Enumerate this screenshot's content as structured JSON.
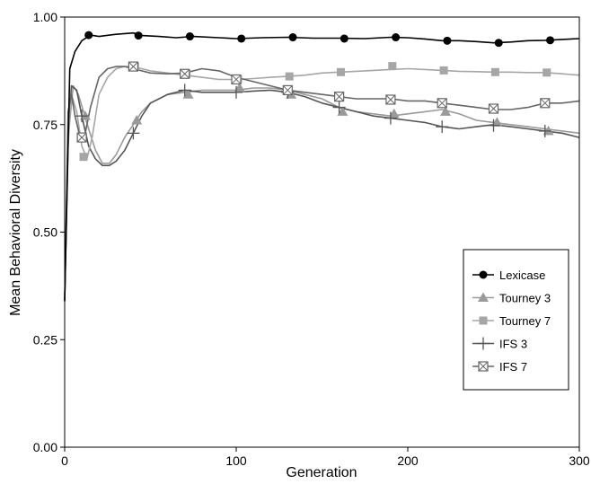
{
  "chart_data": {
    "type": "line",
    "title": "",
    "xlabel": "Generation",
    "ylabel": "Mean Behavioral Diversity",
    "xlim": [
      0,
      300
    ],
    "ylim": [
      0.0,
      1.0
    ],
    "xticks": [
      0,
      100,
      200,
      300
    ],
    "yticks": [
      0.0,
      0.25,
      0.5,
      0.75,
      1.0
    ],
    "xtick_labels": [
      "0",
      "100",
      "200",
      "300"
    ],
    "ytick_labels": [
      "0.00",
      "0.25",
      "0.50",
      "0.75",
      "1.00"
    ],
    "grid": false,
    "legend_position": "center-right",
    "series": [
      {
        "name": "Lexicase",
        "color": "#000000",
        "marker": "circle",
        "x": [
          0,
          3,
          6,
          10,
          15,
          20,
          30,
          40,
          45,
          55,
          65,
          75,
          90,
          100,
          115,
          130,
          145,
          160,
          175,
          190,
          200,
          210,
          220,
          230,
          240,
          250,
          260,
          270,
          280,
          290,
          300
        ],
        "y": [
          0.34,
          0.88,
          0.92,
          0.945,
          0.958,
          0.955,
          0.96,
          0.963,
          0.957,
          0.955,
          0.952,
          0.955,
          0.952,
          0.95,
          0.952,
          0.953,
          0.951,
          0.951,
          0.95,
          0.953,
          0.952,
          0.949,
          0.945,
          0.945,
          0.943,
          0.94,
          0.942,
          0.945,
          0.946,
          0.948,
          0.95
        ],
        "marker_x": [
          14,
          43,
          73,
          103,
          133,
          163,
          193,
          223,
          253,
          283
        ],
        "marker_y": [
          0.958,
          0.957,
          0.955,
          0.95,
          0.953,
          0.95,
          0.953,
          0.945,
          0.94,
          0.946
        ]
      },
      {
        "name": "Tourney 3",
        "color": "#9a9a9a",
        "marker": "triangle",
        "x": [
          0,
          2,
          5,
          8,
          11,
          14,
          18,
          22,
          26,
          30,
          35,
          40,
          45,
          50,
          60,
          70,
          80,
          90,
          100,
          110,
          120,
          130,
          140,
          150,
          160,
          170,
          180,
          190,
          200,
          210,
          220,
          230,
          240,
          250,
          260,
          270,
          280,
          290,
          300
        ],
        "y": [
          0.34,
          0.72,
          0.84,
          0.82,
          0.78,
          0.74,
          0.69,
          0.66,
          0.66,
          0.68,
          0.72,
          0.75,
          0.78,
          0.8,
          0.82,
          0.825,
          0.83,
          0.83,
          0.83,
          0.835,
          0.835,
          0.83,
          0.82,
          0.81,
          0.79,
          0.78,
          0.775,
          0.77,
          0.775,
          0.78,
          0.785,
          0.775,
          0.76,
          0.755,
          0.75,
          0.745,
          0.74,
          0.735,
          0.73
        ],
        "marker_x": [
          12,
          42,
          72,
          102,
          132,
          162,
          192,
          222,
          252,
          282
        ],
        "marker_y": [
          0.77,
          0.76,
          0.82,
          0.835,
          0.82,
          0.78,
          0.775,
          0.78,
          0.755,
          0.735
        ]
      },
      {
        "name": "Tourney 7",
        "color": "#a6a6a6",
        "marker": "square",
        "x": [
          0,
          2,
          4,
          7,
          10,
          13,
          16,
          20,
          25,
          30,
          35,
          40,
          45,
          50,
          60,
          70,
          80,
          90,
          100,
          110,
          120,
          130,
          140,
          150,
          160,
          170,
          180,
          190,
          200,
          210,
          220,
          230,
          240,
          250,
          260,
          270,
          280,
          290,
          300
        ],
        "y": [
          0.34,
          0.7,
          0.82,
          0.78,
          0.7,
          0.67,
          0.72,
          0.82,
          0.86,
          0.88,
          0.885,
          0.885,
          0.88,
          0.875,
          0.87,
          0.865,
          0.86,
          0.855,
          0.855,
          0.857,
          0.86,
          0.862,
          0.865,
          0.87,
          0.872,
          0.874,
          0.876,
          0.878,
          0.88,
          0.878,
          0.876,
          0.874,
          0.873,
          0.872,
          0.872,
          0.871,
          0.871,
          0.868,
          0.865
        ],
        "marker_x": [
          11,
          41,
          71,
          101,
          131,
          161,
          191,
          221,
          251,
          281
        ],
        "marker_y": [
          0.675,
          0.885,
          0.868,
          0.855,
          0.862,
          0.872,
          0.886,
          0.876,
          0.872,
          0.871
        ]
      },
      {
        "name": "IFS 3",
        "color": "#555555",
        "marker": "plus",
        "x": [
          0,
          2,
          4,
          7,
          10,
          14,
          18,
          22,
          26,
          30,
          35,
          40,
          45,
          50,
          60,
          70,
          80,
          90,
          100,
          110,
          120,
          130,
          140,
          150,
          160,
          170,
          180,
          190,
          200,
          210,
          220,
          230,
          240,
          250,
          260,
          270,
          280,
          290,
          300
        ],
        "y": [
          0.34,
          0.74,
          0.84,
          0.83,
          0.77,
          0.7,
          0.67,
          0.655,
          0.655,
          0.665,
          0.69,
          0.73,
          0.77,
          0.8,
          0.82,
          0.83,
          0.825,
          0.825,
          0.825,
          0.828,
          0.83,
          0.825,
          0.815,
          0.8,
          0.79,
          0.78,
          0.77,
          0.765,
          0.76,
          0.755,
          0.745,
          0.74,
          0.745,
          0.75,
          0.745,
          0.74,
          0.735,
          0.73,
          0.72
        ],
        "marker_x": [
          10,
          40,
          70,
          100,
          130,
          160,
          190,
          220,
          250,
          280
        ],
        "marker_y": [
          0.77,
          0.73,
          0.83,
          0.825,
          0.825,
          0.79,
          0.765,
          0.745,
          0.748,
          0.735
        ]
      },
      {
        "name": "IFS 7",
        "color": "#666666",
        "marker": "boxcross",
        "x": [
          0,
          2,
          4,
          6,
          9,
          12,
          15,
          20,
          25,
          30,
          35,
          40,
          50,
          60,
          70,
          80,
          90,
          100,
          110,
          120,
          130,
          140,
          150,
          160,
          170,
          180,
          190,
          200,
          210,
          220,
          230,
          240,
          250,
          260,
          270,
          280,
          290,
          300
        ],
        "y": [
          0.34,
          0.78,
          0.82,
          0.77,
          0.72,
          0.73,
          0.79,
          0.86,
          0.88,
          0.885,
          0.885,
          0.88,
          0.87,
          0.868,
          0.87,
          0.88,
          0.875,
          0.86,
          0.85,
          0.84,
          0.83,
          0.825,
          0.82,
          0.815,
          0.81,
          0.81,
          0.81,
          0.805,
          0.805,
          0.8,
          0.795,
          0.79,
          0.785,
          0.785,
          0.79,
          0.8,
          0.8,
          0.805
        ],
        "marker_x": [
          10,
          40,
          70,
          100,
          130,
          160,
          190,
          220,
          250,
          280
        ],
        "marker_y": [
          0.72,
          0.885,
          0.868,
          0.855,
          0.83,
          0.815,
          0.808,
          0.8,
          0.787,
          0.8
        ]
      }
    ]
  }
}
